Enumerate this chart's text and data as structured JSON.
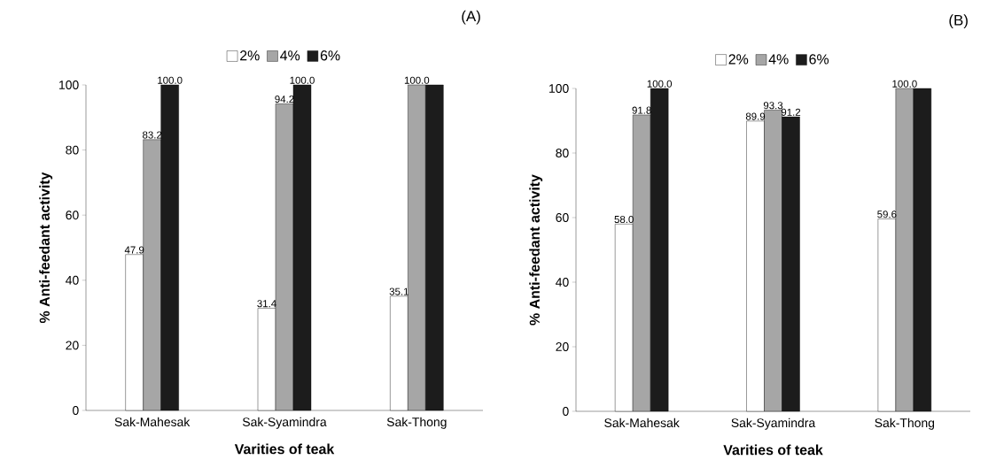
{
  "chart_data": [
    {
      "type": "bar",
      "title": "(A)",
      "xlabel": "Varities of teak",
      "ylabel": "% Anti-feedant activity",
      "categories": [
        "Sak-Mahesak",
        "Sak-Syamindra",
        "Sak-Thong"
      ],
      "ylim": [
        0,
        100
      ],
      "yticks": [
        0,
        20,
        40,
        60,
        80,
        100
      ],
      "legend": "top",
      "grid": false,
      "series": [
        {
          "name": "2%",
          "color": "#ffffff",
          "values": [
            47.9,
            31.4,
            35.1
          ],
          "value_labels": [
            "47.9",
            "31.4",
            "35.1"
          ]
        },
        {
          "name": "4%",
          "color": "#a6a6a6",
          "values": [
            83.2,
            94.2,
            100.0
          ],
          "value_labels": [
            "83.2",
            "94.2",
            "100.0"
          ]
        },
        {
          "name": "6%",
          "color": "#1c1c1c",
          "values": [
            100.0,
            100.0,
            100.0
          ],
          "value_labels": [
            "100.0",
            "100.0",
            null
          ]
        }
      ]
    },
    {
      "type": "bar",
      "title": "(B)",
      "xlabel": "Varities of teak",
      "ylabel": "% Anti-feedant activity",
      "categories": [
        "Sak-Mahesak",
        "Sak-Syamindra",
        "Sak-Thong"
      ],
      "ylim": [
        0,
        100
      ],
      "yticks": [
        0,
        20,
        40,
        60,
        80,
        100
      ],
      "legend": "top",
      "grid": false,
      "series": [
        {
          "name": "2%",
          "color": "#ffffff",
          "values": [
            58.0,
            89.9,
            59.6
          ],
          "value_labels": [
            "58.0",
            "89.9",
            "59.6"
          ]
        },
        {
          "name": "4%",
          "color": "#a6a6a6",
          "values": [
            91.8,
            93.3,
            100.0
          ],
          "value_labels": [
            "91.8",
            "93.3",
            "100.0"
          ]
        },
        {
          "name": "6%",
          "color": "#1c1c1c",
          "values": [
            100.0,
            91.2,
            100.0
          ],
          "value_labels": [
            "100.0",
            "91.2",
            null
          ]
        }
      ]
    }
  ]
}
